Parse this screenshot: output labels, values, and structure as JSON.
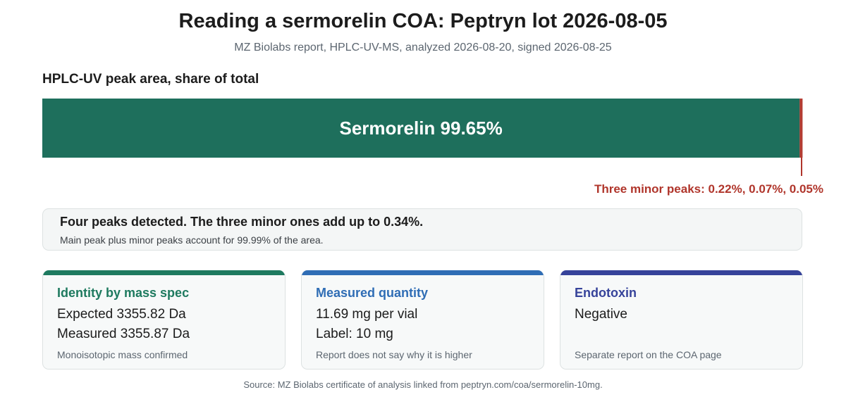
{
  "header": {
    "title": "Reading a sermorelin COA: Peptryn lot 2026-08-05",
    "subtitle": "MZ Biolabs report, HPLC-UV-MS, analyzed 2026-08-20, signed 2026-08-25"
  },
  "section_label": "HPLC-UV peak area, share of total",
  "colors": {
    "main_peak": "#1e6f5c",
    "minor_peaks": "#b0352b",
    "identity": "#1e7a5f",
    "quantity": "#2f6db5",
    "endotoxin": "#36439a"
  },
  "chart_data": {
    "type": "bar",
    "orientation": "horizontal-stacked",
    "categories": [
      "Sermorelin",
      "Minor peak 1",
      "Minor peak 2",
      "Minor peak 3"
    ],
    "values": [
      99.65,
      0.22,
      0.07,
      0.05
    ],
    "xlim": [
      0,
      100
    ],
    "main_label": "Sermorelin 99.65%",
    "minor_annotation": "Three minor peaks: 0.22%, 0.07%, 0.05%"
  },
  "summary": {
    "headline": "Four peaks detected. The three minor ones add up to 0.34%.",
    "detail": "Main peak plus minor peaks account for 99.99% of the area."
  },
  "cards": [
    {
      "title": "Identity by mass spec",
      "line1": "Expected 3355.82 Da",
      "line2": "Measured 3355.87 Da",
      "footnote": "Monoisotopic mass confirmed"
    },
    {
      "title": "Measured quantity",
      "line1": "11.69 mg per vial",
      "line2": "Label: 10 mg",
      "footnote": "Report does not say why it is higher"
    },
    {
      "title": "Endotoxin",
      "line1": "Negative",
      "line2": "",
      "footnote": "Separate report on the COA page"
    }
  ],
  "source": "Source: MZ Biolabs certificate of analysis linked from peptryn.com/coa/sermorelin-10mg."
}
